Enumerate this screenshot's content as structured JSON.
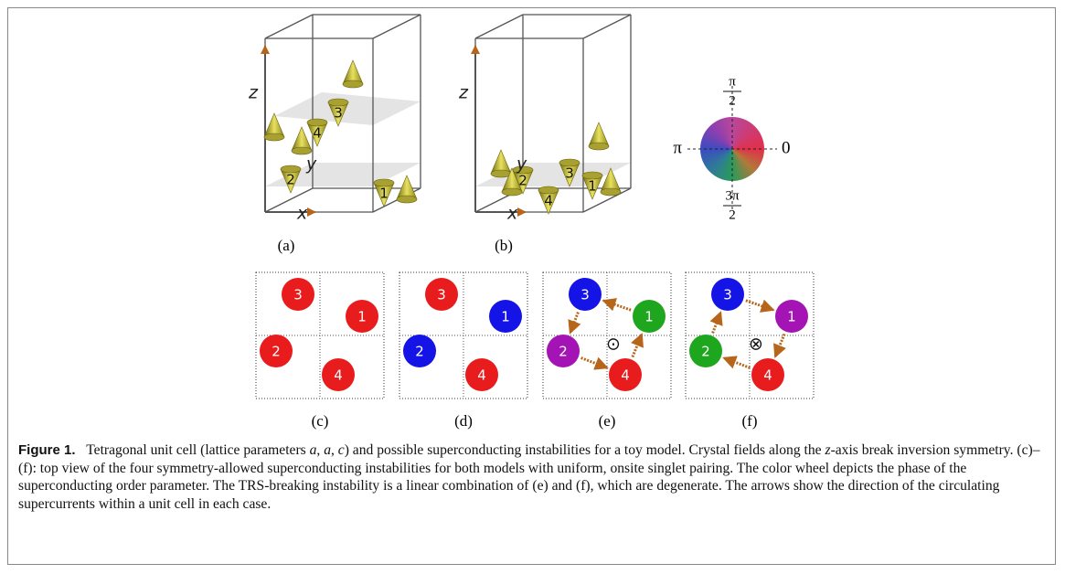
{
  "panels_3d": [
    {
      "label": "(a)",
      "axes": [
        "z",
        "y",
        "x"
      ],
      "sites": [
        "1",
        "2",
        "3",
        "4"
      ]
    },
    {
      "label": "(b)",
      "axes": [
        "z",
        "y",
        "x"
      ],
      "sites": [
        "1",
        "2",
        "3",
        "4"
      ]
    }
  ],
  "color_wheel": {
    "top": {
      "num": "π",
      "den": "2"
    },
    "right": "0",
    "left": "π",
    "bottom": {
      "num": "3π",
      "den": "2"
    }
  },
  "panels_top": [
    {
      "label": "(c)",
      "sites": [
        {
          "n": "3",
          "color": "#e81c1c"
        },
        {
          "n": "1",
          "color": "#e81c1c"
        },
        {
          "n": "2",
          "color": "#e81c1c"
        },
        {
          "n": "4",
          "color": "#e81c1c"
        }
      ]
    },
    {
      "label": "(d)",
      "sites": [
        {
          "n": "3",
          "color": "#e81c1c"
        },
        {
          "n": "1",
          "color": "#1414e6"
        },
        {
          "n": "2",
          "color": "#1414e6"
        },
        {
          "n": "4",
          "color": "#e81c1c"
        }
      ]
    },
    {
      "label": "(e)",
      "symbol": "⊙",
      "sites": [
        {
          "n": "3",
          "color": "#1414e6"
        },
        {
          "n": "1",
          "color": "#1ea61e"
        },
        {
          "n": "2",
          "color": "#a414b4"
        },
        {
          "n": "4",
          "color": "#e81c1c"
        }
      ]
    },
    {
      "label": "(f)",
      "symbol": "⊗",
      "sites": [
        {
          "n": "3",
          "color": "#1414e6"
        },
        {
          "n": "1",
          "color": "#a414b4"
        },
        {
          "n": "2",
          "color": "#1ea61e"
        },
        {
          "n": "4",
          "color": "#e81c1c"
        }
      ]
    }
  ],
  "caption": {
    "label": "Figure 1.",
    "parts": [
      {
        "text": "Tetragonal unit cell (lattice parameters "
      },
      {
        "text": "a",
        "italic": true
      },
      {
        "text": ", "
      },
      {
        "text": "a",
        "italic": true
      },
      {
        "text": ", "
      },
      {
        "text": "c",
        "italic": true
      },
      {
        "text": ") and possible superconducting instabilities for a toy model. Crystal fields along the "
      },
      {
        "text": "z",
        "italic": true
      },
      {
        "text": "-axis break inversion symmetry. (c)–(f): top view of the four symmetry-allowed superconducting instabilities for both models with uniform, onsite singlet pairing. The color wheel depicts the phase of the superconducting order parameter. The TRS-breaking instability is a linear combination of (e) and (f), which are degenerate. The arrows show the direction of the circulating supercurrents within a unit cell in each case."
      }
    ]
  }
}
